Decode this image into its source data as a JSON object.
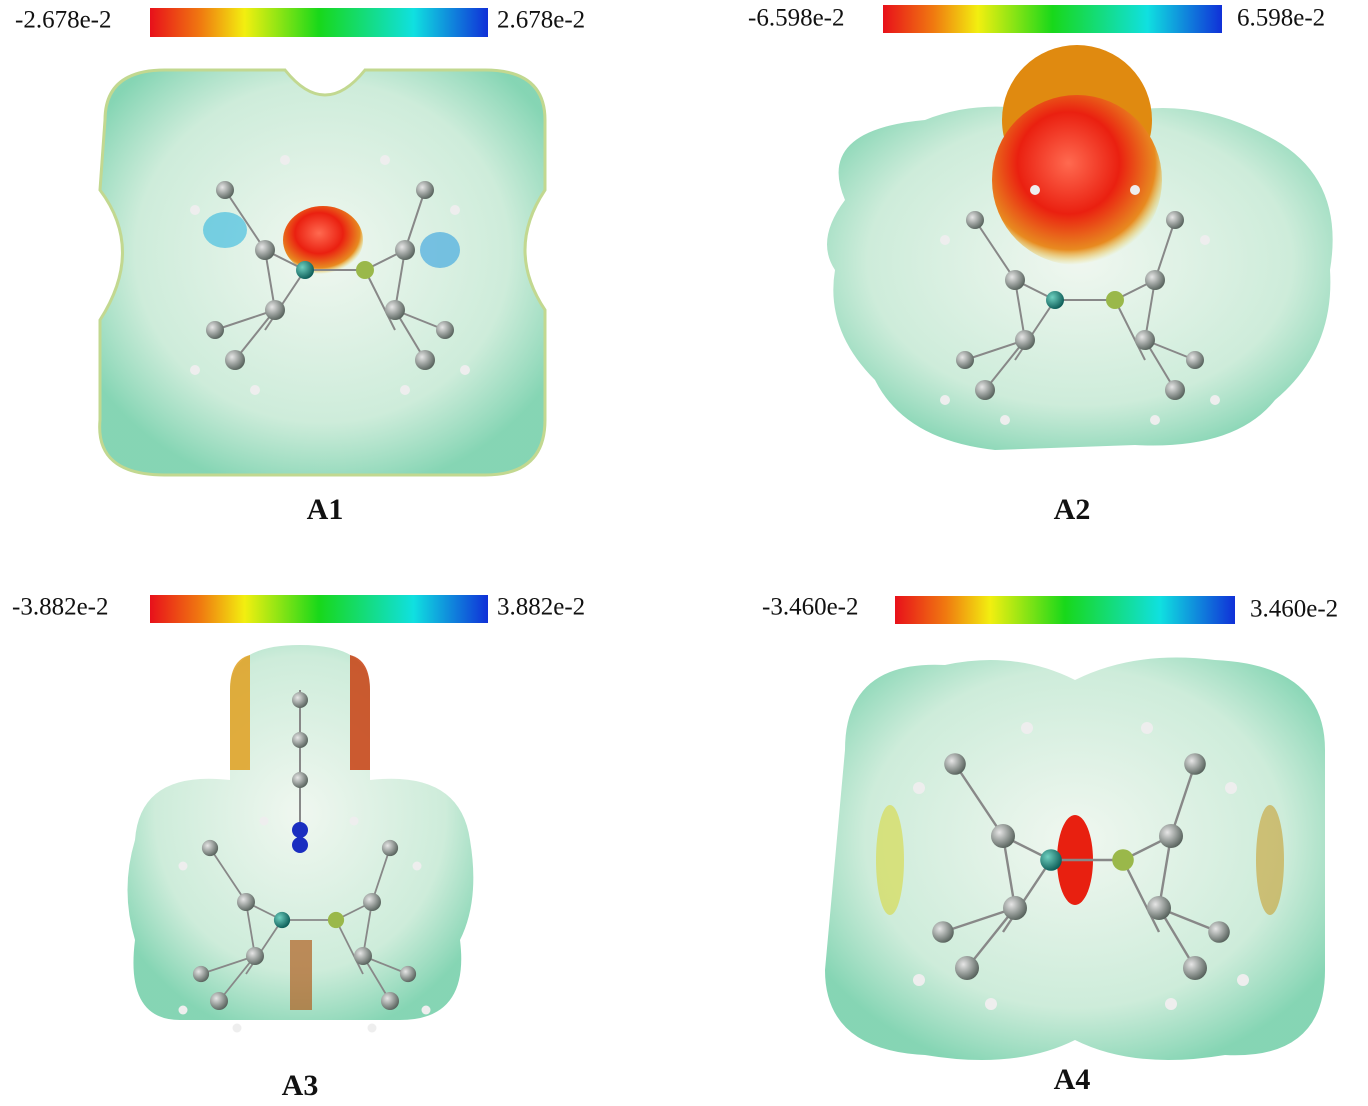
{
  "panels": [
    {
      "min_label": "-2.678e-2",
      "max_label": "2.678e-2",
      "name": "A1"
    },
    {
      "min_label": "-6.598e-2",
      "max_label": "6.598e-2",
      "name": "A2"
    },
    {
      "min_label": "-3.882e-2",
      "max_label": "3.882e-2",
      "name": "A3"
    },
    {
      "min_label": "-3.460e-2",
      "max_label": "3.460e-2",
      "name": "A4"
    }
  ]
}
